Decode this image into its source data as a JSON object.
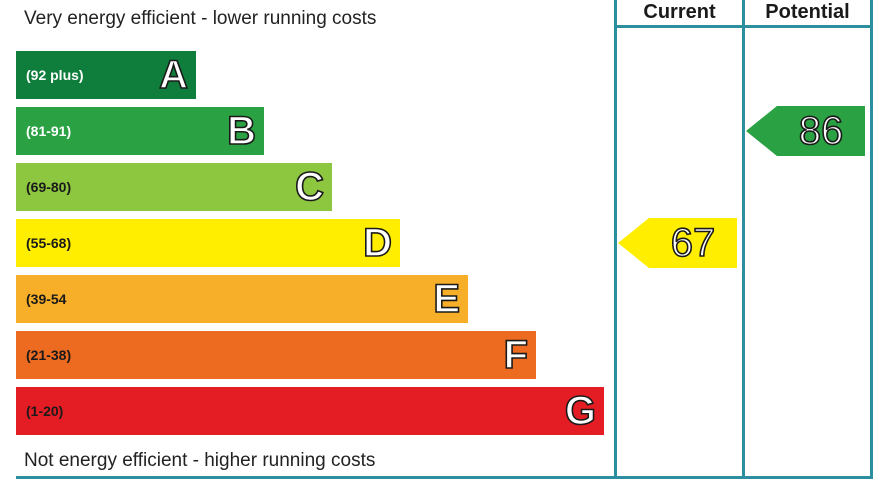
{
  "chart_data": {
    "type": "bar",
    "title": "",
    "captions": {
      "top": "Very energy efficient - lower running costs",
      "bottom": "Not energy efficient - higher running costs"
    },
    "bands": [
      {
        "letter": "A",
        "range": "(92 plus)",
        "min": 92,
        "max": 100,
        "color": "#0f7d3c",
        "text_color": "#ffffff"
      },
      {
        "letter": "B",
        "range": "(81-91)",
        "min": 81,
        "max": 91,
        "color": "#2aa143",
        "text_color": "#ffffff"
      },
      {
        "letter": "C",
        "range": "(69-80)",
        "min": 69,
        "max": 80,
        "color": "#8dc63f",
        "text_color": "#1a1a1a"
      },
      {
        "letter": "D",
        "range": "(55-68)",
        "min": 55,
        "max": 68,
        "color": "#ffee00",
        "text_color": "#1a1a1a"
      },
      {
        "letter": "E",
        "range": "(39-54",
        "min": 39,
        "max": 54,
        "color": "#f7ae29",
        "text_color": "#1a1a1a"
      },
      {
        "letter": "F",
        "range": "(21-38)",
        "min": 21,
        "max": 38,
        "color": "#ed6b21",
        "text_color": "#1a1a1a"
      },
      {
        "letter": "G",
        "range": "(1-20)",
        "min": 1,
        "max": 20,
        "color": "#e31d23",
        "text_color": "#1a1a1a"
      }
    ],
    "columns": [
      "Current",
      "Potential"
    ],
    "ratings": [
      {
        "column": "Current",
        "value": 67,
        "band": "D",
        "color": "#ffee00"
      },
      {
        "column": "Potential",
        "value": 86,
        "band": "B",
        "color": "#2aa143"
      }
    ]
  }
}
